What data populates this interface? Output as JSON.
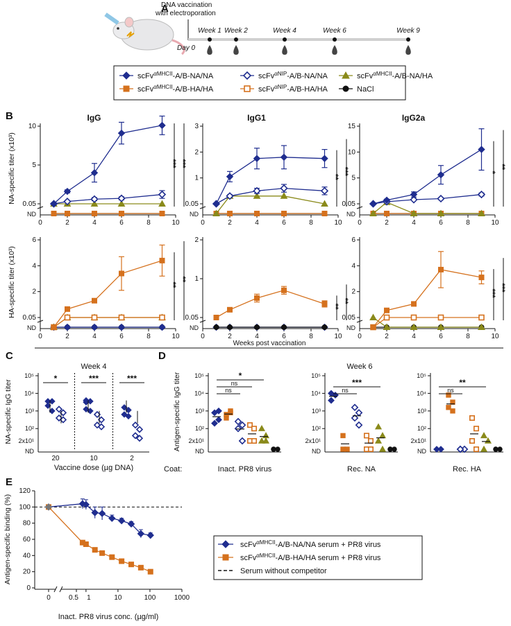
{
  "figure": {
    "panel_labels": [
      "A",
      "B",
      "C",
      "D",
      "E"
    ],
    "colors": {
      "navy": "#1f2d8f",
      "orange": "#d5711d",
      "olive": "#8a8a1a",
      "black": "#111111"
    }
  },
  "panelA": {
    "vacc_line1": "DNA vaccination",
    "vacc_line2": "with electroporation",
    "day0": "Day 0",
    "weeks": [
      "Week 1",
      "Week 2",
      "Week 4",
      "Week 6",
      "Week 9"
    ]
  },
  "legend": {
    "items": [
      {
        "pre": "scFv",
        "sup": "αMHCII",
        "post": "-A/B-NA/NA",
        "marker": "diamond",
        "color": "#1f2d8f",
        "filled": true
      },
      {
        "pre": "scFv",
        "sup": "αNIP",
        "post": "-A/B-NA/NA",
        "marker": "diamond",
        "color": "#1f2d8f",
        "filled": false
      },
      {
        "pre": "scFv",
        "sup": "αMHCII",
        "post": "-A/B-NA/HA",
        "marker": "triangle",
        "color": "#8a8a1a",
        "filled": true
      },
      {
        "pre": "scFv",
        "sup": "αMHCII",
        "post": "-A/B-HA/HA",
        "marker": "square",
        "color": "#d5711d",
        "filled": true
      },
      {
        "pre": "scFv",
        "sup": "αNIP",
        "post": "-A/B-HA/HA",
        "marker": "square",
        "color": "#d5711d",
        "filled": false
      },
      {
        "pre": "",
        "sup": "",
        "post": "NaCl",
        "marker": "circle",
        "color": "#111111",
        "filled": true
      }
    ]
  },
  "chart_data": [
    {
      "id": "B-IgG-NA",
      "type": "line",
      "title": "IgG",
      "ylabel": "NA-specific titer (x10³)",
      "yticks": [
        "0.05",
        "5",
        "10"
      ],
      "ynd": "ND",
      "x": [
        1,
        2,
        4,
        6,
        9
      ],
      "xticks": [
        "0",
        "2",
        "4",
        "6",
        "8",
        "10"
      ],
      "series": [
        {
          "name": "scFvαMHCII-A/B-NA/NA",
          "color": "#1f2d8f",
          "marker": "diamond",
          "filled": true,
          "values": [
            0.05,
            1.6,
            4.0,
            9.1,
            10.1
          ],
          "err": [
            0.1,
            0.2,
            1.2,
            1.4,
            1.2
          ]
        },
        {
          "name": "scFvαNIP-A/B-NA/NA",
          "color": "#1f2d8f",
          "marker": "diamond",
          "filled": false,
          "values": [
            0.05,
            0.3,
            0.6,
            0.7,
            1.2
          ],
          "err": [
            0,
            0.1,
            0.2,
            0.2,
            0.5
          ]
        },
        {
          "name": "scFvαMHCII-A/B-NA/HA",
          "color": "#8a8a1a",
          "marker": "triangle",
          "filled": true,
          "values": [
            0.05,
            0.05,
            0.05,
            0.05,
            0.05
          ],
          "err": [
            0,
            0,
            0,
            0,
            0
          ]
        },
        {
          "name": "scFvαMHCII-A/B-HA/HA",
          "color": "#d5711d",
          "marker": "square",
          "filled": true,
          "values": [
            -1,
            -1,
            -1,
            -1,
            -1
          ],
          "err": [
            0,
            0,
            0,
            0,
            0
          ]
        },
        {
          "name": "NaCl",
          "color": "#111111",
          "marker": "circle",
          "filled": true,
          "values": [
            -1,
            -1,
            -1,
            -1,
            -1
          ],
          "err": [
            0,
            0,
            0,
            0,
            0
          ]
        }
      ],
      "sig": [
        "***",
        "***"
      ]
    },
    {
      "id": "B-IgG1-NA",
      "type": "line",
      "title": "IgG1",
      "yticks": [
        "0.05",
        "1",
        "2",
        "3"
      ],
      "ynd": "ND",
      "x": [
        1,
        2,
        4,
        6,
        9
      ],
      "xticks": [
        "0",
        "2",
        "4",
        "6",
        "8",
        "10"
      ],
      "series": [
        {
          "name": "scFvαMHCII-A/B-NA/NA",
          "color": "#1f2d8f",
          "marker": "diamond",
          "filled": true,
          "values": [
            0.05,
            1.05,
            1.75,
            1.8,
            1.75
          ],
          "err": [
            0,
            0.2,
            0.4,
            0.45,
            0.35
          ]
        },
        {
          "name": "scFvαNIP-A/B-NA/NA",
          "color": "#1f2d8f",
          "marker": "diamond",
          "filled": false,
          "values": [
            0.05,
            0.3,
            0.5,
            0.6,
            0.5
          ],
          "err": [
            0,
            0.05,
            0.1,
            0.15,
            0.15
          ]
        },
        {
          "name": "scFvαMHCII-A/B-NA/HA",
          "color": "#8a8a1a",
          "marker": "triangle",
          "filled": true,
          "values": [
            -1,
            0.3,
            0.3,
            0.3,
            0.05
          ],
          "err": [
            0,
            0,
            0,
            0,
            0
          ]
        },
        {
          "name": "scFvαMHCII-A/B-HA/HA",
          "color": "#d5711d",
          "marker": "square",
          "filled": true,
          "values": [
            -1,
            -1,
            -1,
            -1,
            -1
          ],
          "err": [
            0,
            0,
            0,
            0,
            0
          ]
        },
        {
          "name": "NaCl",
          "color": "#111111",
          "marker": "circle",
          "filled": true,
          "values": [
            -1,
            -1,
            -1,
            -1,
            -1
          ],
          "err": [
            0,
            0,
            0,
            0,
            0
          ]
        }
      ],
      "sig": [
        "**",
        "***"
      ]
    },
    {
      "id": "B-IgG2a-NA",
      "type": "line",
      "title": "IgG2a",
      "yticks": [
        "0.05",
        "5",
        "10",
        "15"
      ],
      "ynd": "ND",
      "x": [
        1,
        2,
        4,
        6,
        9
      ],
      "xticks": [
        "0",
        "2",
        "4",
        "6",
        "8",
        "10"
      ],
      "series": [
        {
          "name": "scFvαMHCII-A/B-NA/NA",
          "color": "#1f2d8f",
          "marker": "diamond",
          "filled": true,
          "values": [
            0.05,
            0.7,
            1.8,
            5.6,
            10.5
          ],
          "err": [
            0,
            0.2,
            0.5,
            1.8,
            4.0
          ]
        },
        {
          "name": "scFvαNIP-A/B-NA/NA",
          "color": "#1f2d8f",
          "marker": "diamond",
          "filled": false,
          "values": [
            0.05,
            0.4,
            0.8,
            1.0,
            1.8
          ],
          "err": [
            0,
            0,
            0.1,
            0.2,
            0.3
          ]
        },
        {
          "name": "scFvαMHCII-A/B-NA/HA",
          "color": "#8a8a1a",
          "marker": "triangle",
          "filled": true,
          "values": [
            -1,
            0.3,
            -1,
            -1,
            -1
          ],
          "err": [
            0,
            0,
            0,
            0,
            0
          ]
        },
        {
          "name": "scFvαMHCII-A/B-HA/HA",
          "color": "#d5711d",
          "marker": "square",
          "filled": true,
          "values": [
            -1,
            -1,
            -1,
            -1,
            -1
          ],
          "err": [
            0,
            0,
            0,
            0,
            0
          ]
        },
        {
          "name": "NaCl",
          "color": "#111111",
          "marker": "circle",
          "filled": true,
          "values": [
            -1,
            -1,
            -1,
            -1,
            -1
          ],
          "err": [
            0,
            0,
            0,
            0,
            0
          ]
        }
      ],
      "sig": [
        "*",
        "**"
      ]
    },
    {
      "id": "B-IgG-HA",
      "type": "line",
      "ylabel": "HA-specific titer (x10³)",
      "yticks": [
        "0.05",
        "2",
        "4",
        "6"
      ],
      "ynd": "ND",
      "x": [
        1,
        2,
        4,
        6,
        9
      ],
      "xticks": [
        "0",
        "2",
        "4",
        "6",
        "8",
        "10"
      ],
      "series": [
        {
          "name": "scFvαMHCII-A/B-HA/HA",
          "color": "#d5711d",
          "marker": "square",
          "filled": true,
          "values": [
            -1,
            0.65,
            1.3,
            3.4,
            4.4
          ],
          "err": [
            0,
            0.1,
            0.1,
            1.3,
            1.2
          ]
        },
        {
          "name": "scFvαNIP-A/B-HA/HA",
          "color": "#d5711d",
          "marker": "square",
          "filled": false,
          "values": [
            -1,
            0.05,
            0.05,
            0.05,
            0.05
          ],
          "err": [
            0,
            0,
            0,
            0,
            0
          ]
        },
        {
          "name": "scFvαMHCII-A/B-NA/HA",
          "color": "#8a8a1a",
          "marker": "triangle",
          "filled": true,
          "values": [
            -1,
            0.05,
            0.05,
            0.05,
            0.05
          ],
          "err": [
            0,
            0,
            0,
            0,
            0
          ]
        },
        {
          "name": "scFvαMHCII-A/B-NA/NA",
          "color": "#1f2d8f",
          "marker": "diamond",
          "filled": true,
          "values": [
            -1,
            -1,
            -1,
            -1,
            -1
          ],
          "err": [
            0,
            0,
            0,
            0,
            0
          ]
        },
        {
          "name": "NaCl",
          "color": "#111111",
          "marker": "circle",
          "filled": true,
          "values": [
            -1,
            -1,
            -1,
            -1,
            -1
          ],
          "err": [
            0,
            0,
            0,
            0,
            0
          ]
        }
      ],
      "sig": [
        "**",
        "**"
      ]
    },
    {
      "id": "B-IgG1-HA",
      "type": "line",
      "yticks": [
        "0.05",
        "1",
        "2"
      ],
      "ynd": "ND",
      "x": [
        1,
        2,
        4,
        6,
        9
      ],
      "xticks": [
        "0",
        "2",
        "4",
        "6",
        "8",
        "10"
      ],
      "series": [
        {
          "name": "scFvαMHCII-A/B-HA/HA",
          "color": "#d5711d",
          "marker": "square",
          "filled": true,
          "values": [
            0.05,
            0.2,
            0.5,
            0.7,
            0.35
          ],
          "err": [
            0,
            0.03,
            0.1,
            0.1,
            0.08
          ]
        },
        {
          "name": "NaCl",
          "color": "#111111",
          "marker": "circle",
          "filled": true,
          "values": [
            -1,
            -1,
            -1,
            -1,
            -1
          ],
          "err": [
            0,
            0,
            0,
            0,
            0
          ]
        },
        {
          "name": "scFvαMHCII-A/B-NA/NA",
          "color": "#1f2d8f",
          "marker": "diamond",
          "filled": true,
          "values": [
            -1,
            -1,
            -1,
            -1,
            -1
          ],
          "err": [
            0,
            0,
            0,
            0,
            0
          ]
        }
      ],
      "sig": [
        "**",
        "**"
      ]
    },
    {
      "id": "B-IgG2a-HA",
      "type": "line",
      "yticks": [
        "0.05",
        "2",
        "4",
        "6"
      ],
      "ynd": "ND",
      "x": [
        1,
        2,
        4,
        6,
        9
      ],
      "xticks": [
        "0",
        "2",
        "4",
        "6",
        "8",
        "10"
      ],
      "series": [
        {
          "name": "scFvαMHCII-A/B-HA/HA",
          "color": "#d5711d",
          "marker": "square",
          "filled": true,
          "values": [
            -1,
            0.55,
            1.05,
            3.7,
            3.1
          ],
          "err": [
            0,
            0.05,
            0.1,
            1.4,
            0.5
          ]
        },
        {
          "name": "scFvαNIP-A/B-HA/HA",
          "color": "#d5711d",
          "marker": "square",
          "filled": false,
          "values": [
            -1,
            0.05,
            0.05,
            0.05,
            0.05
          ],
          "err": [
            0,
            0,
            0,
            0,
            0
          ]
        },
        {
          "name": "scFvαMHCII-A/B-NA/HA",
          "color": "#8a8a1a",
          "marker": "triangle",
          "filled": true,
          "values": [
            0.05,
            -1,
            -1,
            -1,
            -1
          ],
          "err": [
            0,
            0,
            0,
            0,
            0
          ]
        },
        {
          "name": "NaCl",
          "color": "#111111",
          "marker": "circle",
          "filled": true,
          "values": [
            -1,
            -1,
            -1,
            -1,
            -1
          ],
          "err": [
            0,
            0,
            0,
            0,
            0
          ]
        }
      ],
      "sig": [
        "***",
        "***"
      ]
    }
  ],
  "panelB": {
    "xlabel": "Weeks post vaccination"
  },
  "panelC": {
    "title": "Week 4",
    "ylabel": "NA-specific IgG titer",
    "xlabel": "Vaccine dose (µg DNA)",
    "doses": [
      "20",
      "10",
      "2"
    ],
    "yticks": [
      "10¹",
      "10²",
      "10³",
      "10⁴",
      "10⁵"
    ],
    "y_low": "2x10¹",
    "ynd": "ND",
    "sig": [
      "*",
      "***",
      "***"
    ]
  },
  "panelD": {
    "title": "Week 6",
    "ylabel": "Antigen-specific IgG titer",
    "coat_label": "Coat:",
    "coats": [
      "Inact. PR8 virus",
      "Rec. NA",
      "Rec. HA"
    ],
    "yticks": [
      "10¹",
      "10²",
      "10³",
      "10⁴",
      "10⁵"
    ],
    "y_low": "2x10¹",
    "ynd": "ND",
    "brackets": [
      [
        "ns",
        "ns",
        "*"
      ],
      [
        "ns",
        "***"
      ],
      [
        "ns",
        "**"
      ]
    ]
  },
  "panelE": {
    "ylabel": "Antigen-specific binding (%)",
    "xlabel": "Inact. PR8 virus conc. (µg/ml)",
    "yticks": [
      "0",
      "20",
      "40",
      "60",
      "80",
      "100",
      "120"
    ],
    "xticks": [
      "0",
      "0.5",
      "1",
      "10",
      "100",
      "1000"
    ],
    "legend": [
      {
        "pre": "scFv",
        "sup": "αMHCII",
        "post": "-A/B-NA/NA serum + PR8 virus"
      },
      {
        "pre": "scFv",
        "sup": "αMHCII",
        "post": "-A/B-HA/HA serum + PR8 virus"
      },
      {
        "pre": "",
        "sup": "",
        "post": "Serum without competitor"
      }
    ],
    "x": [
      0.78,
      1.0,
      1.9,
      3.2,
      6.5,
      13,
      26,
      52,
      104
    ],
    "series": [
      {
        "name": "NA/NA serum + PR8",
        "color": "#1f2d8f",
        "values": [
          104,
          103,
          93,
          92,
          86,
          83,
          79,
          67,
          65
        ],
        "err": [
          6,
          6,
          7,
          8,
          4,
          3,
          3,
          5,
          3
        ]
      },
      {
        "name": "HA/HA serum + PR8",
        "color": "#d5711d",
        "values": [
          56,
          54,
          47,
          43,
          38,
          33,
          29,
          25,
          20
        ],
        "err": [
          2,
          2,
          2,
          2,
          2,
          2,
          2,
          2,
          2
        ]
      }
    ]
  }
}
